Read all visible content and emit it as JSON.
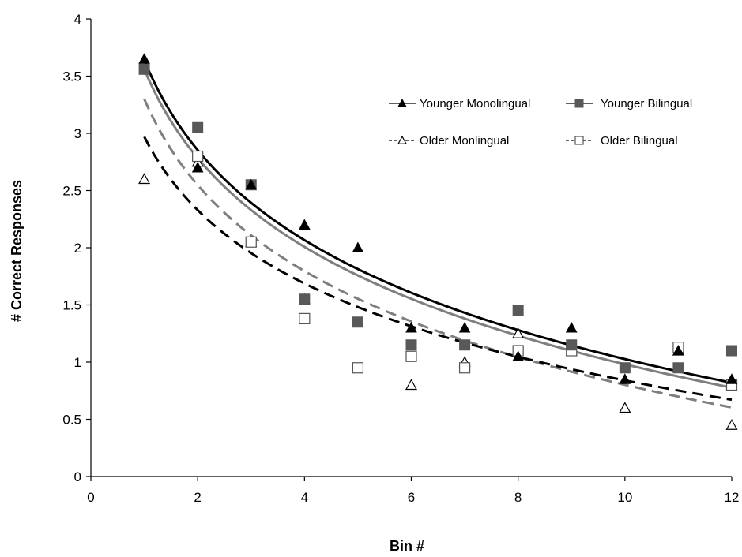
{
  "chart_data": {
    "type": "scatter",
    "xlabel": "Bin #",
    "ylabel": "# Correct Responses",
    "xlim": [
      0,
      12
    ],
    "ylim": [
      0,
      4
    ],
    "xticks": [
      0,
      2,
      4,
      6,
      8,
      10,
      12
    ],
    "yticks": [
      0,
      0.5,
      1,
      1.5,
      2,
      2.5,
      3,
      3.5,
      4
    ],
    "grid": false,
    "legend_position": "top-right",
    "series": [
      {
        "name": "Younger Monolingual",
        "marker": "triangle-filled",
        "color": "#000000",
        "trend_style": "solid",
        "trend_color": "#000000",
        "trend": {
          "a": 3.64,
          "b": 1.135
        },
        "x": [
          1,
          2,
          3,
          4,
          5,
          6,
          7,
          8,
          9,
          10,
          11,
          12
        ],
        "values": [
          3.65,
          2.7,
          2.55,
          2.2,
          2.0,
          1.3,
          1.3,
          1.05,
          1.3,
          0.85,
          1.1,
          0.85
        ]
      },
      {
        "name": "Younger Bilingual",
        "marker": "square-filled",
        "color": "#595959",
        "trend_style": "solid",
        "trend_color": "#7f7f7f",
        "trend": {
          "a": 3.56,
          "b": 1.12
        },
        "x": [
          1,
          2,
          3,
          4,
          5,
          6,
          7,
          8,
          9,
          10,
          11,
          12
        ],
        "values": [
          3.56,
          3.05,
          2.55,
          1.55,
          1.35,
          1.15,
          1.15,
          1.45,
          1.15,
          0.95,
          0.95,
          1.1
        ]
      },
      {
        "name": "Older Monlingual",
        "marker": "triangle-open",
        "color": "#000000",
        "trend_style": "dashed",
        "trend_color": "#000000",
        "trend": {
          "a": 2.97,
          "b": 0.925
        },
        "x": [
          1,
          2,
          3,
          4,
          5,
          6,
          7,
          8,
          9,
          10,
          11,
          12
        ],
        "values": [
          2.6,
          2.75,
          2.05,
          1.55,
          null,
          0.8,
          1.0,
          1.25,
          1.1,
          0.6,
          1.1,
          0.45
        ]
      },
      {
        "name": "Older Bilingual",
        "marker": "square-open",
        "color": "#000000",
        "trend_style": "dashed",
        "trend_color": "#7f7f7f",
        "trend": {
          "a": 3.3,
          "b": 1.085
        },
        "x": [
          1,
          2,
          3,
          4,
          5,
          6,
          7,
          8,
          9,
          10,
          11,
          12
        ],
        "values": [
          null,
          2.8,
          2.05,
          1.38,
          0.95,
          1.05,
          0.95,
          1.1,
          1.1,
          null,
          1.13,
          0.8
        ]
      }
    ]
  }
}
